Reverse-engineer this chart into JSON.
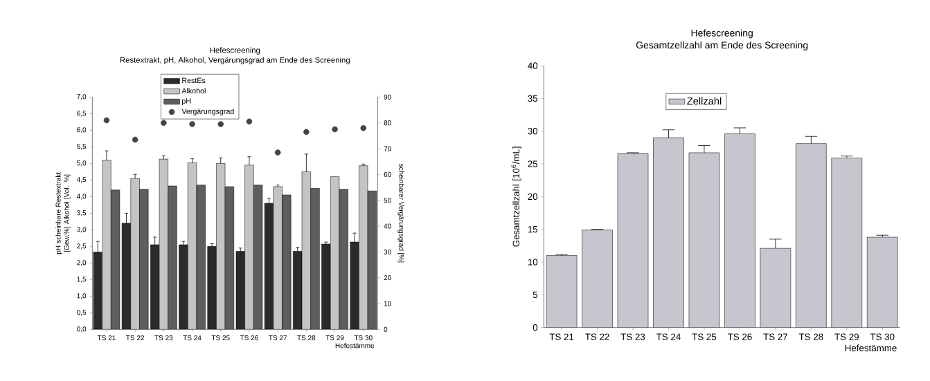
{
  "chart_data": [
    {
      "type": "bar",
      "title": "Hefescreening",
      "subtitle": "Restextrakt, pH, Alkohol, Vergärungsgrad am Ende des Screening",
      "xlabel": "Hefestämme",
      "ylabel": "pH scheinbare Restextrakt [Gew.%] Alkohol [Vol. %]",
      "y2label": "scheinbarer Vergärungsgrad [%]",
      "categories": [
        "TS 21",
        "TS 22",
        "TS 23",
        "TS 24",
        "TS 25",
        "TS 26",
        "TS 27",
        "TS 28",
        "TS 29",
        "TS 30"
      ],
      "series": [
        {
          "name": "RestEs",
          "color": "#2b2b2b",
          "values": [
            2.33,
            3.2,
            2.55,
            2.55,
            2.5,
            2.35,
            3.8,
            2.35,
            2.57,
            2.63
          ],
          "errors": [
            0.32,
            0.3,
            0.23,
            0.1,
            0.08,
            0.1,
            0.15,
            0.12,
            0.06,
            0.27
          ]
        },
        {
          "name": "Alkohol",
          "color": "#c4c4c4",
          "values": [
            5.1,
            4.55,
            5.13,
            5.02,
            5.0,
            4.95,
            4.3,
            4.75,
            4.6,
            4.93
          ],
          "errors": [
            0.28,
            0.12,
            0.1,
            0.12,
            0.17,
            0.25,
            0.05,
            0.53,
            null,
            0.05
          ]
        },
        {
          "name": "pH",
          "color": "#5e5e5e",
          "values": [
            4.2,
            4.22,
            4.32,
            4.35,
            4.3,
            4.35,
            4.05,
            4.25,
            4.22,
            4.17
          ]
        },
        {
          "name": "Vergärungsgrad",
          "type": "scatter",
          "axis": "y2",
          "color": "#444444",
          "values": [
            81,
            73.5,
            80,
            79.5,
            79.5,
            80.5,
            68.5,
            76.5,
            77.5,
            78
          ]
        }
      ],
      "ylim": [
        0,
        7
      ],
      "yticks": [
        {
          "value": 0,
          "label": "0,0"
        },
        {
          "value": 0.5,
          "label": "0,5"
        },
        {
          "value": 1,
          "label": "1,0"
        },
        {
          "value": 1.5,
          "label": "1,5"
        },
        {
          "value": 2,
          "label": "2,0"
        },
        {
          "value": 2.5,
          "label": "2,5"
        },
        {
          "value": 3,
          "label": "3,0"
        },
        {
          "value": 3.5,
          "label": "3,5"
        },
        {
          "value": 4,
          "label": "4,0"
        },
        {
          "value": 4.5,
          "label": "4,5"
        },
        {
          "value": 5,
          "label": "5,0"
        },
        {
          "value": 5.5,
          "label": "5,5"
        },
        {
          "value": 6,
          "label": "6,0"
        },
        {
          "value": 6.5,
          "label": "6,5"
        },
        {
          "value": 7,
          "label": "7,0"
        }
      ],
      "y2lim": [
        0,
        90
      ],
      "y2ticks": [
        0,
        10,
        20,
        30,
        40,
        50,
        60,
        70,
        80,
        90
      ],
      "legend": "top"
    },
    {
      "type": "bar",
      "title": "Hefescreening",
      "subtitle": "Gesamtzellzahl am Ende des Screening",
      "xlabel": "Hefestämme",
      "ylabel": "Gesamtzellzahl [10$^{6}$/mL]",
      "categories": [
        "TS 21",
        "TS 22",
        "TS 23",
        "TS 24",
        "TS 25",
        "TS 26",
        "TS 27",
        "TS 28",
        "TS 29",
        "TS 30"
      ],
      "series": [
        {
          "name": "Zellzahl",
          "color": "#c6c6ce",
          "values": [
            11,
            14.9,
            26.6,
            29.0,
            26.7,
            29.6,
            12.1,
            28.1,
            25.9,
            13.8
          ],
          "errors": [
            0.2,
            0.1,
            0.1,
            1.2,
            1.1,
            0.9,
            1.4,
            1.1,
            0.3,
            0.3
          ]
        }
      ],
      "ylim": [
        0,
        40
      ],
      "yticks": [
        0,
        5,
        10,
        15,
        20,
        25,
        30,
        35,
        40
      ],
      "legend": "top"
    }
  ]
}
